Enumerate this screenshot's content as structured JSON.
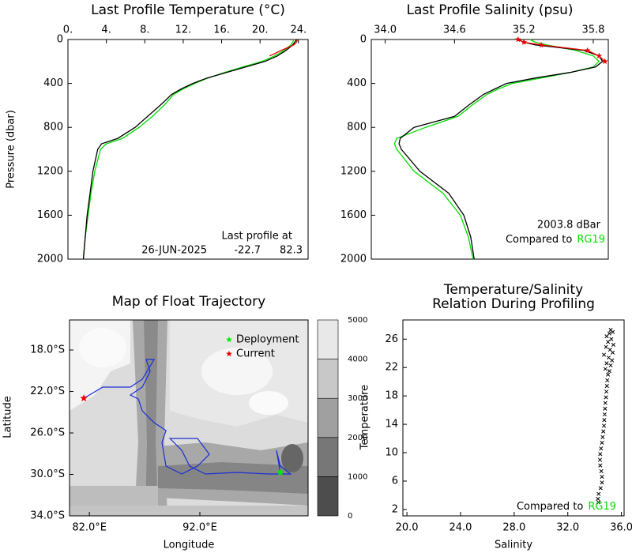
{
  "chart_data": [
    {
      "type": "profile",
      "title": "Last Profile Temperature (°C)",
      "ylabel": "Pressure (dbar)",
      "xaxis_position": "top",
      "xlim": [
        0,
        25
      ],
      "xticks": [
        {
          "value": 0,
          "label": "0."
        },
        {
          "value": 4,
          "label": "4."
        },
        {
          "value": 8,
          "label": "8."
        },
        {
          "value": 12,
          "label": "12."
        },
        {
          "value": 16,
          "label": "16."
        },
        {
          "value": 20,
          "label": "20."
        },
        {
          "value": 24,
          "label": "24."
        }
      ],
      "ylim": [
        2000,
        0
      ],
      "yticks": [
        0,
        400,
        800,
        1200,
        1600,
        2000
      ],
      "pressure": [
        0,
        25,
        50,
        100,
        150,
        200,
        250,
        300,
        350,
        400,
        450,
        500,
        600,
        700,
        800,
        900,
        950,
        1000,
        1200,
        1400,
        1600,
        1800,
        2000
      ],
      "series": [
        {
          "color": "#00dd00",
          "values": [
            23.5,
            23.4,
            23.2,
            22.5,
            21.5,
            20.2,
            18.2,
            16.3,
            14.6,
            13.2,
            12.0,
            11.0,
            10.0,
            8.8,
            7.4,
            5.7,
            4.0,
            3.4,
            2.8,
            2.4,
            2.1,
            1.8,
            1.6
          ]
        },
        {
          "color": "#000000",
          "values": [
            23.8,
            23.6,
            23.4,
            22.7,
            21.8,
            20.5,
            18.5,
            16.5,
            14.5,
            13.0,
            11.8,
            10.8,
            9.6,
            8.3,
            7.0,
            5.2,
            3.5,
            3.1,
            2.6,
            2.3,
            2.0,
            1.8,
            1.6
          ]
        },
        {
          "color": "#ee0000",
          "values": [
            23.9,
            23.8,
            23.5,
            22.2,
            21.0,
            null,
            null,
            null,
            null,
            null,
            null,
            null,
            null,
            null,
            null,
            null,
            null,
            null,
            null,
            null,
            null,
            null,
            null
          ]
        }
      ],
      "annotation": [
        "Last profile at",
        "26-JUN-2025",
        "-22.7",
        "82.3"
      ]
    },
    {
      "type": "profile",
      "title": "Last Profile Salinity (psu)",
      "xaxis_position": "top",
      "xlim": [
        33.88,
        35.93
      ],
      "xticks": [
        {
          "value": 34,
          "label": "34.0"
        },
        34.6,
        35.2,
        35.8
      ],
      "ylim": [
        2000,
        0
      ],
      "yticks": [
        0,
        400,
        800,
        1200,
        1600,
        2000
      ],
      "pressure": [
        0,
        25,
        50,
        100,
        150,
        200,
        250,
        300,
        350,
        400,
        450,
        500,
        600,
        700,
        800,
        900,
        950,
        1000,
        1200,
        1400,
        1600,
        1800,
        2000
      ],
      "series": [
        {
          "color": "#00dd00",
          "values": [
            35.25,
            35.3,
            35.4,
            35.65,
            35.8,
            35.85,
            35.8,
            35.6,
            35.35,
            35.1,
            34.98,
            34.88,
            34.75,
            34.63,
            34.35,
            34.1,
            34.08,
            34.1,
            34.25,
            34.5,
            34.65,
            34.72,
            34.76
          ]
        },
        {
          "color": "#000000",
          "values": [
            35.15,
            35.2,
            35.3,
            35.72,
            35.85,
            35.88,
            35.82,
            35.6,
            35.3,
            35.05,
            34.95,
            34.85,
            34.72,
            34.6,
            34.25,
            34.13,
            34.12,
            34.14,
            34.3,
            34.55,
            34.68,
            34.74,
            34.77
          ]
        },
        {
          "color": "#ee0000",
          "markers": true,
          "values": [
            35.15,
            35.2,
            35.35,
            35.75,
            35.85,
            35.9,
            null,
            null,
            null,
            null,
            null,
            null,
            null,
            null,
            null,
            null,
            null,
            null,
            null,
            null,
            null,
            null,
            null
          ]
        }
      ],
      "annotation": [
        "2003.8 dBar",
        "Compared to",
        "RG19"
      ]
    },
    {
      "type": "map",
      "title": "Map of Float Trajectory",
      "xlabel": "Longitude",
      "ylabel": "Latitude",
      "xlim": [
        80.2,
        101.8
      ],
      "xticks": [
        {
          "value": 82,
          "label": "82.0°E"
        },
        {
          "value": 92,
          "label": "92.0°E"
        }
      ],
      "ylim": [
        -34,
        -15.1
      ],
      "yticks": [
        {
          "value": -18,
          "label": "18.0°S"
        },
        {
          "value": -22,
          "label": "22.0°S"
        },
        {
          "value": -26,
          "label": "26.0°S"
        },
        {
          "value": -30,
          "label": "30.0°S"
        },
        {
          "value": -34,
          "label": "34.0°S"
        }
      ],
      "trajectory": {
        "color": "#1a2fd6",
        "lon": [
          99.29,
          98.93,
          99.29,
          100.21,
          98.21,
          95.36,
          92.5,
          91.07,
          90.36,
          89.29,
          91.79,
          92.86,
          91.79,
          90.36,
          88.93,
          88.57,
          88.93,
          87.86,
          86.79,
          86.43,
          85.71,
          86.79,
          87.5,
          87.14,
          87.86,
          86.79,
          85.71,
          84.64,
          83.21,
          81.5
        ],
        "lat": [
          -29.81,
          -27.68,
          -29.2,
          -29.96,
          -29.96,
          -29.81,
          -29.96,
          -29.2,
          -27.68,
          -26.53,
          -26.53,
          -28.06,
          -29.2,
          -29.96,
          -29.2,
          -26.91,
          -25.77,
          -25.01,
          -23.87,
          -22.72,
          -22.34,
          -21.58,
          -20.06,
          -18.91,
          -18.91,
          -20.82,
          -21.58,
          -21.58,
          -21.58,
          -22.65
        ]
      },
      "markers": [
        {
          "name": "Deployment",
          "color": "#00ee00",
          "lon": 99.29,
          "lat": -29.81
        },
        {
          "name": "Current",
          "color": "#ee0000",
          "lon": 81.5,
          "lat": -22.65
        }
      ],
      "colorbar": {
        "levels": [
          0,
          1000,
          2000,
          3000,
          4000,
          5000
        ],
        "colors": [
          "#4d4d4d",
          "#777777",
          "#a0a0a0",
          "#c8c8c8",
          "#e8e8e8"
        ]
      }
    },
    {
      "type": "scatter",
      "title": [
        "Temperature/Salinity",
        "Relation During Profiling"
      ],
      "xlabel": "Salinity",
      "ylabel": "Temperature",
      "xlim": [
        19.7,
        36.2
      ],
      "xticks": [
        {
          "value": 20,
          "label": "20.0"
        },
        {
          "value": 24,
          "label": "24.0"
        },
        {
          "value": 28,
          "label": "28.0"
        },
        {
          "value": 32,
          "label": "32.0"
        },
        {
          "value": 36,
          "label": "36.0"
        }
      ],
      "ylim": [
        1.1,
        28.7
      ],
      "yticks": [
        2,
        6,
        10,
        14,
        18,
        22,
        26
      ],
      "color": "#000000",
      "x": [
        34.3,
        34.25,
        34.3,
        34.45,
        34.55,
        34.55,
        34.5,
        34.42,
        34.4,
        34.42,
        34.48,
        34.55,
        34.6,
        34.65,
        34.7,
        34.72,
        34.75,
        34.78,
        34.8,
        34.85,
        34.88,
        34.92,
        34.95,
        35.0,
        35.1,
        34.8,
        35.2,
        34.9,
        35.3,
        35.05,
        34.7,
        35.35,
        35.15,
        34.85,
        35.4,
        35.0,
        35.25,
        34.9,
        35.1,
        35.35,
        35.2
      ],
      "values": [
        3.0,
        3.5,
        4.2,
        5.0,
        5.8,
        6.6,
        7.4,
        8.2,
        9.0,
        9.8,
        10.6,
        11.4,
        12.2,
        13.0,
        13.8,
        14.6,
        15.4,
        16.2,
        17.0,
        17.8,
        18.6,
        19.4,
        20.2,
        21.0,
        21.5,
        21.8,
        22.3,
        22.6,
        23.0,
        23.4,
        23.8,
        24.1,
        24.5,
        24.9,
        25.2,
        25.6,
        26.0,
        26.4,
        26.8,
        27.0,
        27.3
      ],
      "annotation": [
        "Compared to",
        "RG19"
      ],
      "annotation_color": "#00dd00"
    }
  ]
}
